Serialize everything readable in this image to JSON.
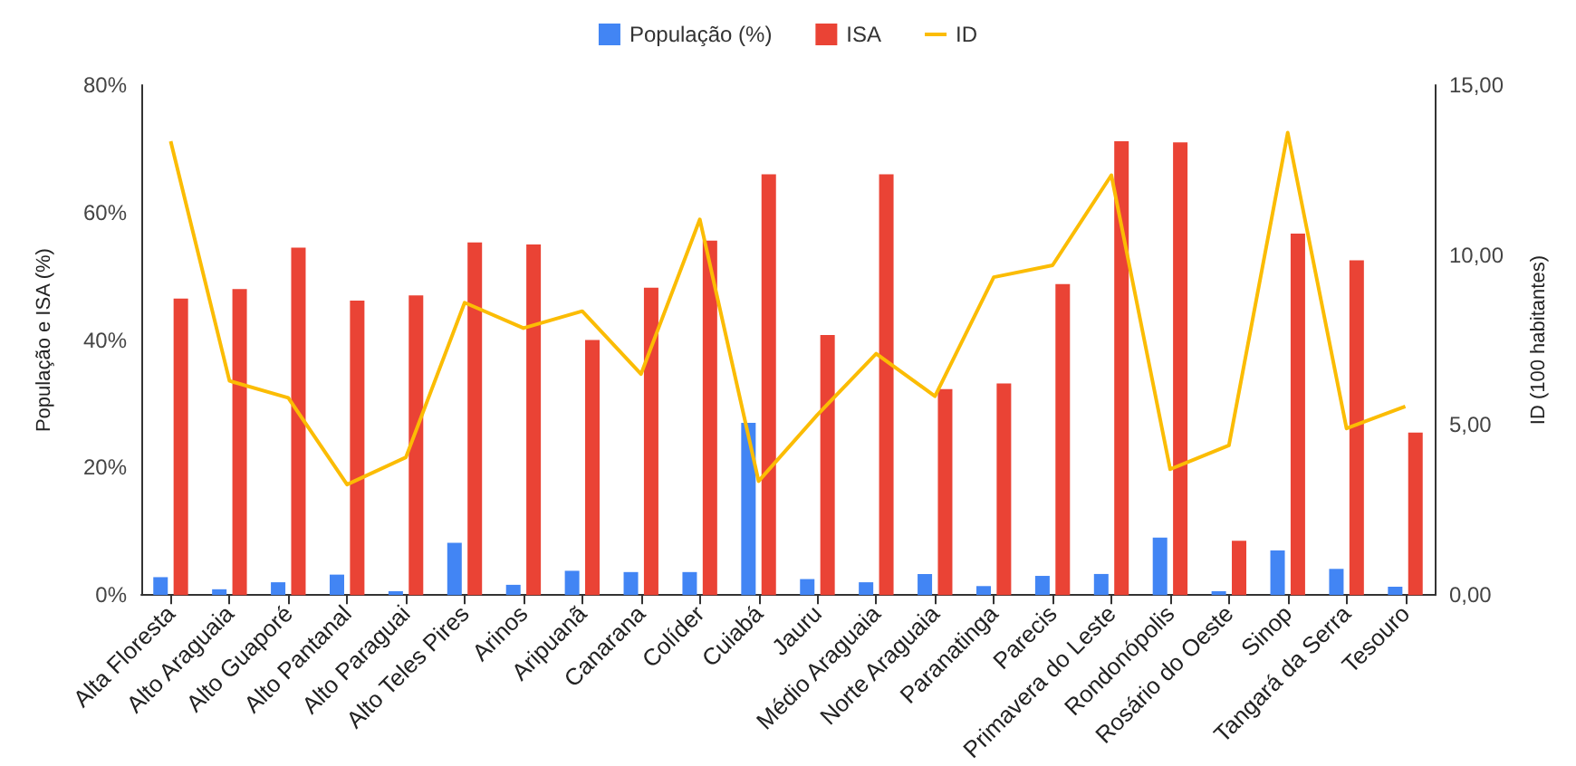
{
  "chart_data": {
    "type": "bar",
    "ylabel": "População e ISA (%)",
    "y2label": "ID (100 habitantes)",
    "categories": [
      "Alta Floresta",
      "Alto Araguaia",
      "Alto Guaporé",
      "Alto Pantanal",
      "Alto Paraguai",
      "Alto Teles Pires",
      "Arinos",
      "Aripuanã",
      "Canarana",
      "Colíder",
      "Cuiabá",
      "Jauru",
      "Médio Araguaia",
      "Norte Araguaia",
      "Paranatinga",
      "Parecis",
      "Primavera do Leste",
      "Rondonópolis",
      "Rosário do Oeste",
      "Sinop",
      "Tangará da Serra",
      "Tesouro"
    ],
    "series": [
      {
        "name": "População (%)",
        "color": "#4285f4",
        "values": [
          2.8,
          0.9,
          2,
          3.2,
          0.6,
          8.2,
          1.6,
          3.8,
          3.6,
          3.6,
          27,
          2.5,
          2,
          3.3,
          1.4,
          3,
          3.3,
          9,
          0.6,
          7,
          4.1,
          1.3
        ]
      },
      {
        "name": "ISA",
        "color": "#ea4335",
        "values": [
          46.5,
          48,
          54.5,
          46.2,
          47,
          55.3,
          55,
          40,
          48.2,
          55.6,
          66,
          40.8,
          66,
          32.3,
          33.2,
          48.8,
          71.2,
          71,
          8.5,
          56.7,
          52.5,
          25.5
        ]
      },
      {
        "name": "ID",
        "type": "line",
        "axis": "y2",
        "color": "#fbbc04",
        "values": [
          13.35,
          6.3,
          5.8,
          3.25,
          4.05,
          8.6,
          7.85,
          8.35,
          6.5,
          11.05,
          3.35,
          5.3,
          7.1,
          5.85,
          9.35,
          9.7,
          12.35,
          3.7,
          4.4,
          13.6,
          4.9,
          5.55
        ]
      }
    ],
    "ylim": [
      0,
      80
    ],
    "yticks": [
      {
        "value": 0,
        "label": "0%"
      },
      {
        "value": 20,
        "label": "20%"
      },
      {
        "value": 40,
        "label": "40%"
      },
      {
        "value": 60,
        "label": "60%"
      },
      {
        "value": 80,
        "label": "80%"
      }
    ],
    "y2lim": [
      0,
      15
    ],
    "y2ticks": [
      {
        "value": 0,
        "label": "0,00"
      },
      {
        "value": 5,
        "label": "5,00"
      },
      {
        "value": 10,
        "label": "10,00"
      },
      {
        "value": 15,
        "label": "15,00"
      }
    ],
    "grid": false,
    "legend": "top",
    "marker": "none"
  }
}
